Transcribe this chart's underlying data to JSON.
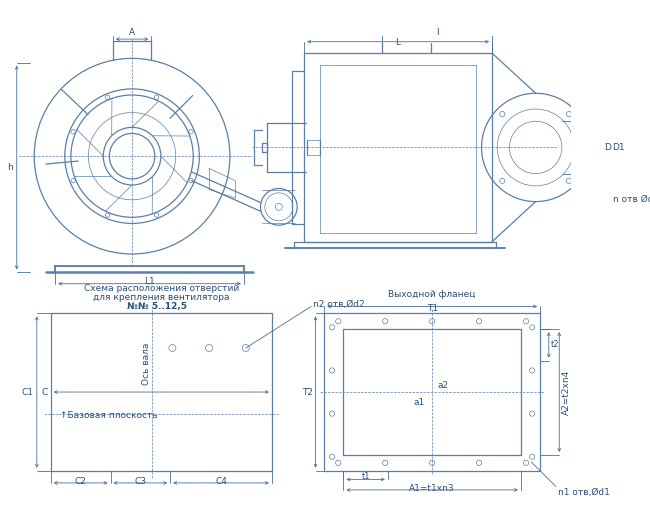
{
  "bg_color": "#ffffff",
  "line_color": "#5a7fa8",
  "dim_color": "#4a6f98",
  "text_color": "#2a4f78",
  "fig_width": 6.5,
  "fig_height": 5.26,
  "dpi": 100,
  "schema_text1": "Схема расположения отверстий",
  "schema_text2": "для крепления вентилятора",
  "schema_text3": "№№ 5..12,5",
  "flange_title": "Выходной фланец",
  "labels": {
    "A": "A",
    "L": "L",
    "l": "l",
    "L1": "L1",
    "h": "h",
    "D": "D",
    "D1": "D1",
    "n_otv_d": "n отв Ød",
    "C": "C",
    "C1": "C1",
    "C2": "C2",
    "C3": "C3",
    "C4": "C4",
    "os_vala": "Ось вала",
    "baz_ploskost": "Базовая плоскость",
    "n2_otv": "n2 отв,Ød2",
    "T1": "T1",
    "T2": "T2",
    "A1": "A1=t1хn3",
    "A2": "A2=t2хn4",
    "a1": "a1",
    "a2": "a2",
    "t1": "t1",
    "t2": "t2",
    "n1_otv": "n1 отв,Ød1"
  }
}
